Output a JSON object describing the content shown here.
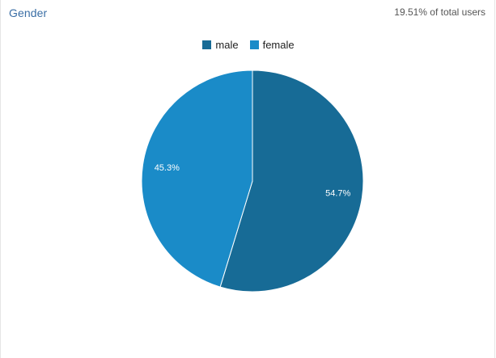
{
  "header": {
    "title": "Gender",
    "subtitle": "19.51% of total users"
  },
  "chart_data": {
    "type": "pie",
    "title": "Gender",
    "categories": [
      "male",
      "female"
    ],
    "values": [
      54.7,
      45.3
    ],
    "labels": [
      "54.7%",
      "45.3%"
    ],
    "colors": [
      "#176b96",
      "#1a8bc8"
    ],
    "legend_position": "top-center",
    "start_angle": "12 o'clock, clockwise"
  }
}
